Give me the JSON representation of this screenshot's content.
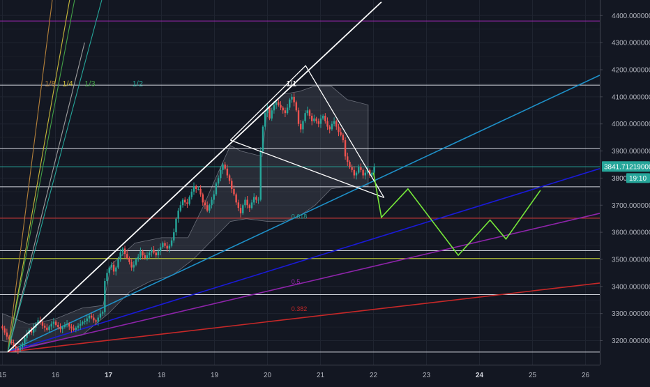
{
  "chart_data": {
    "type": "candlestick",
    "symbol": "",
    "price_axis": {
      "min": 3150,
      "max": 4450,
      "ticks": [
        "3200.00000000",
        "3300.00000000",
        "3400.00000000",
        "3500.00000000",
        "3600.00000000",
        "3700.00000000",
        "3800.00000000",
        "3900.00000000",
        "4000.00000000",
        "4100.00000000",
        "4200.00000000",
        "4300.00000000",
        "4400.00000000"
      ],
      "tick_values": [
        3200,
        3300,
        3400,
        3500,
        3600,
        3700,
        3800,
        3900,
        4000,
        4100,
        4200,
        4300,
        4400
      ]
    },
    "time_axis": {
      "min": 15,
      "max": 26.6,
      "ticks": [
        {
          "label": "15",
          "value": 15,
          "bold": false
        },
        {
          "label": "16",
          "value": 16,
          "bold": false
        },
        {
          "label": "17",
          "value": 17,
          "bold": true
        },
        {
          "label": "18",
          "value": 18,
          "bold": false
        },
        {
          "label": "19",
          "value": 19,
          "bold": false
        },
        {
          "label": "20",
          "value": 20,
          "bold": false
        },
        {
          "label": "21",
          "value": 21,
          "bold": false
        },
        {
          "label": "22",
          "value": 22,
          "bold": false
        },
        {
          "label": "23",
          "value": 23,
          "bold": false
        },
        {
          "label": "24",
          "value": 24,
          "bold": true
        },
        {
          "label": "25",
          "value": 25,
          "bold": false
        },
        {
          "label": "26",
          "value": 26,
          "bold": false
        }
      ]
    },
    "last_price": {
      "label": "3841.71219000",
      "value": 3841.7,
      "color": "#26a69a"
    },
    "countdown": {
      "label": "19:10",
      "partial_price": "3800.000",
      "value": 3800
    },
    "horizontal_levels": [
      {
        "price": 4380,
        "color": "#9c27b0"
      },
      {
        "price": 4143,
        "color": "#d1d4dc"
      },
      {
        "price": 3910,
        "color": "#d1d4dc"
      },
      {
        "price": 3842,
        "color": "#26a69a"
      },
      {
        "price": 3768,
        "color": "#d1d4dc"
      },
      {
        "price": 3652,
        "color": "#e53935"
      },
      {
        "price": 3532,
        "color": "#d1d4dc"
      },
      {
        "price": 3503,
        "color": "#cddc39"
      },
      {
        "price": 3370,
        "color": "#d1d4dc"
      },
      {
        "price": 3158,
        "color": "#d1d4dc"
      }
    ],
    "gann_fan": {
      "origin": {
        "t": 15.1,
        "p": 3158
      },
      "lines": [
        {
          "label": "1/8",
          "color": "#b5813a",
          "t2": 16.0,
          "p2": 4550
        },
        {
          "label": "1/4",
          "color": "#c8b93a",
          "t2": 16.35,
          "p2": 4550
        },
        {
          "label": "",
          "color": "#9e9e9e",
          "t2": 16.55,
          "p2": 4300
        },
        {
          "label": "1/3",
          "color": "#43a047",
          "t2": 16.45,
          "p2": 4550
        },
        {
          "label": "1/2",
          "color": "#26a69a",
          "t2": 17.0,
          "p2": 4550
        },
        {
          "label": "1/1",
          "color": "#ffffff",
          "t2": 22.15,
          "p2": 4450
        }
      ],
      "label_price": 4140,
      "label_times": [
        15.8,
        16.13,
        16.55,
        17.45
      ],
      "one_one_label": {
        "t": 20.35,
        "p": 4140
      }
    },
    "trend_lines": [
      {
        "color": "#1e90c8",
        "t1": 15.1,
        "p1": 3158,
        "t2": 26.6,
        "p2": 4210
      },
      {
        "color": "#1a1ad8",
        "t1": 15.1,
        "p1": 3158,
        "t2": 26.6,
        "p2": 3855
      },
      {
        "color": "#8e24aa",
        "t1": 15.1,
        "p1": 3158,
        "t2": 26.6,
        "p2": 3685
      },
      {
        "color": "#c62828",
        "t1": 15.1,
        "p1": 3158,
        "t2": 26.6,
        "p2": 3420
      }
    ],
    "fib_labels": [
      {
        "text": "0.618",
        "t": 20.45,
        "p": 3650,
        "color": "#26a69a"
      },
      {
        "text": "0.5",
        "t": 20.45,
        "p": 3410,
        "color": "#9c27b0"
      },
      {
        "text": "0.382",
        "t": 20.45,
        "p": 3310,
        "color": "#c62828"
      }
    ],
    "triangle": {
      "color": "#ffffff",
      "points": [
        [
          19.3,
          3940
        ],
        [
          20.72,
          4215
        ],
        [
          22.2,
          3728
        ]
      ]
    },
    "triangle_inner": {
      "color": "#ffffff",
      "t1": 19.3,
      "p1": 3940,
      "t2": 22.2,
      "p2": 3728
    },
    "projection": {
      "color": "#76e83a",
      "points": [
        [
          22.0,
          3820
        ],
        [
          22.15,
          3655
        ],
        [
          22.65,
          3760
        ],
        [
          23.6,
          3515
        ],
        [
          24.2,
          3645
        ],
        [
          24.5,
          3575
        ],
        [
          25.15,
          3755
        ]
      ]
    },
    "envelope": {
      "upper": [
        [
          15.0,
          3300
        ],
        [
          15.5,
          3260
        ],
        [
          16.0,
          3280
        ],
        [
          16.5,
          3320
        ],
        [
          16.9,
          3330
        ],
        [
          17.05,
          3480
        ],
        [
          17.5,
          3560
        ],
        [
          18.0,
          3580
        ],
        [
          18.5,
          3580
        ],
        [
          18.8,
          3700
        ],
        [
          19.0,
          3790
        ],
        [
          19.3,
          3920
        ],
        [
          19.5,
          3900
        ],
        [
          19.9,
          3880
        ],
        [
          20.0,
          4060
        ],
        [
          20.3,
          4110
        ],
        [
          20.6,
          4120
        ],
        [
          20.9,
          4140
        ],
        [
          21.2,
          4140
        ],
        [
          21.5,
          4090
        ],
        [
          21.9,
          4070
        ]
      ],
      "lower": [
        [
          21.9,
          3770
        ],
        [
          21.5,
          3770
        ],
        [
          21.2,
          3760
        ],
        [
          20.9,
          3700
        ],
        [
          20.6,
          3660
        ],
        [
          20.3,
          3640
        ],
        [
          20.0,
          3640
        ],
        [
          19.6,
          3650
        ],
        [
          19.3,
          3640
        ],
        [
          19.0,
          3580
        ],
        [
          18.6,
          3500
        ],
        [
          18.2,
          3440
        ],
        [
          17.8,
          3420
        ],
        [
          17.4,
          3380
        ],
        [
          17.0,
          3300
        ],
        [
          16.5,
          3220
        ],
        [
          16.0,
          3200
        ],
        [
          15.5,
          3180
        ],
        [
          15.0,
          3200
        ]
      ]
    },
    "candles": {
      "t_start": 15.0,
      "t_step": 0.042,
      "color_up": "#26a69a",
      "color_down": "#ef5350",
      "close": [
        3245,
        3230,
        3215,
        3205,
        3190,
        3180,
        3172,
        3165,
        3175,
        3190,
        3210,
        3225,
        3240,
        3230,
        3248,
        3262,
        3275,
        3268,
        3255,
        3248,
        3240,
        3252,
        3262,
        3270,
        3258,
        3250,
        3242,
        3250,
        3258,
        3262,
        3252,
        3245,
        3240,
        3248,
        3255,
        3262,
        3268,
        3272,
        3282,
        3292,
        3285,
        3275,
        3270,
        3285,
        3300,
        3305,
        3420,
        3450,
        3470,
        3480,
        3455,
        3470,
        3500,
        3525,
        3540,
        3520,
        3505,
        3490,
        3470,
        3480,
        3500,
        3510,
        3530,
        3515,
        3505,
        3515,
        3525,
        3535,
        3525,
        3515,
        3530,
        3545,
        3560,
        3550,
        3540,
        3550,
        3570,
        3600,
        3650,
        3680,
        3700,
        3720,
        3710,
        3705,
        3730,
        3750,
        3770,
        3760,
        3760,
        3740,
        3710,
        3700,
        3680,
        3700,
        3720,
        3740,
        3780,
        3800,
        3830,
        3850,
        3835,
        3810,
        3790,
        3760,
        3740,
        3710,
        3690,
        3670,
        3700,
        3720,
        3700,
        3690,
        3710,
        3730,
        3720,
        3720,
        3900,
        3990,
        4040,
        4060,
        4020,
        4050,
        4070,
        4080,
        4070,
        4060,
        4050,
        4040,
        4060,
        4090,
        4100,
        4080,
        4050,
        4000,
        3980,
        4010,
        4040,
        4050,
        4030,
        4010,
        4020,
        4010,
        4000,
        4020,
        4030,
        4010,
        3990,
        3980,
        4000,
        4010,
        3990,
        3970,
        3960,
        3940,
        3880,
        3860,
        3840,
        3830,
        3810,
        3820,
        3840,
        3830,
        3810,
        3820,
        3830,
        3810,
        3820,
        3840
      ]
    }
  }
}
